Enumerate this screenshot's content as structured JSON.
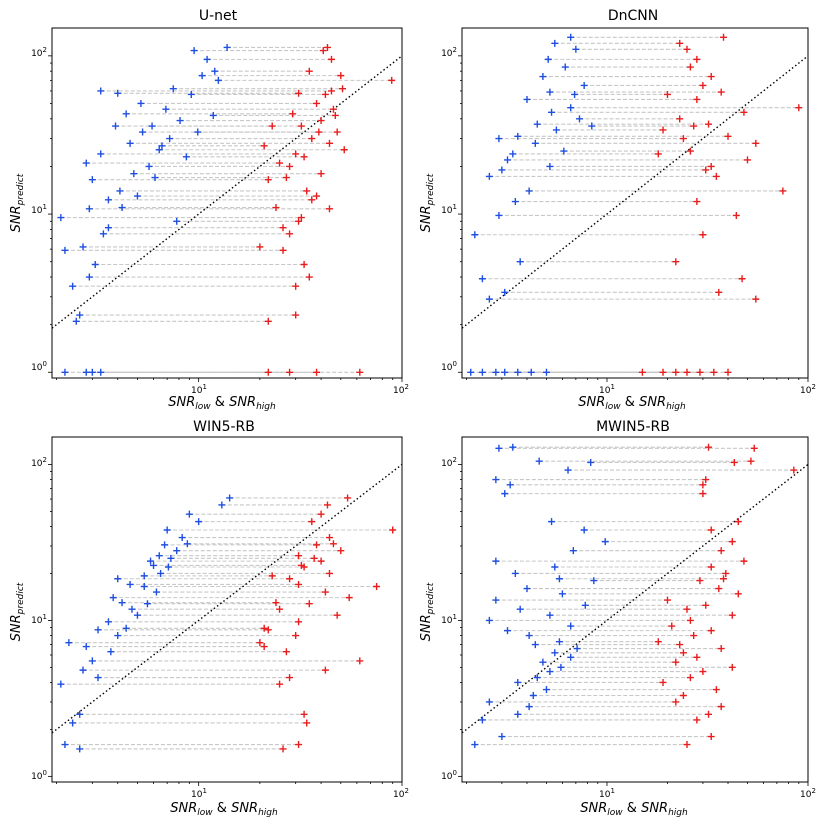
{
  "figure": {
    "xlabel": {
      "main1": "SNR",
      "sub1": "low",
      "mid": " & ",
      "main2": "SNR",
      "sub2": "high"
    },
    "ylabel": {
      "main": "SNR",
      "sub": "predict"
    }
  },
  "colors": {
    "low": "#1f4fe0",
    "high": "#e81d1d",
    "link": "#c8c8c8",
    "diag": "#000000"
  },
  "chart_data": [
    {
      "type": "scatter",
      "title": "U-net",
      "xscale": "log",
      "yscale": "log",
      "xlim": [
        1.9,
        100
      ],
      "ylim": [
        0.92,
        150
      ],
      "ticks": {
        "x": [
          "10^1",
          "10^2"
        ],
        "y": [
          "10^0",
          "10^1",
          "10^2"
        ]
      },
      "pairs": [
        [
          2.8,
          1.0,
          62
        ],
        [
          2.2,
          1.0,
          28
        ],
        [
          3.0,
          1.0,
          22
        ],
        [
          3.3,
          1.0,
          38
        ],
        [
          2.5,
          2.1,
          22
        ],
        [
          2.6,
          2.3,
          30
        ],
        [
          2.4,
          3.5,
          30
        ],
        [
          2.9,
          4.0,
          35
        ],
        [
          3.1,
          4.8,
          33
        ],
        [
          2.2,
          5.9,
          26
        ],
        [
          2.7,
          6.2,
          20
        ],
        [
          3.4,
          7.5,
          28
        ],
        [
          2.1,
          9.5,
          32
        ],
        [
          2.9,
          10.8,
          44
        ],
        [
          3.6,
          12.3,
          36
        ],
        [
          4.1,
          14.0,
          34
        ],
        [
          3.0,
          16.5,
          22
        ],
        [
          4.8,
          18.0,
          40
        ],
        [
          5.7,
          20.0,
          28
        ],
        [
          2.8,
          21.0,
          25
        ],
        [
          3.3,
          24.0,
          30
        ],
        [
          6.4,
          25.5,
          52
        ],
        [
          4.6,
          28.0,
          44
        ],
        [
          7.2,
          30.0,
          36
        ],
        [
          5.3,
          33.0,
          48
        ],
        [
          3.9,
          36.0,
          32
        ],
        [
          8.1,
          39.0,
          40
        ],
        [
          4.4,
          43.0,
          29
        ],
        [
          6.9,
          46.0,
          46
        ],
        [
          5.2,
          50.0,
          38
        ],
        [
          4.0,
          58.0,
          31
        ],
        [
          7.5,
          62.0,
          51
        ],
        [
          9.2,
          57.0,
          42
        ],
        [
          3.3,
          60.0,
          45
        ],
        [
          10.4,
          75.0,
          50
        ],
        [
          12.0,
          80.0,
          35
        ],
        [
          11.0,
          95.0,
          45
        ],
        [
          13.8,
          113.0,
          43
        ],
        [
          9.5,
          108.0,
          41
        ],
        [
          12.5,
          70.0,
          89
        ],
        [
          8.7,
          23.0,
          33
        ],
        [
          6.1,
          17.0,
          27
        ],
        [
          5.0,
          13.0,
          38
        ],
        [
          4.2,
          11.0,
          24
        ],
        [
          7.8,
          9.0,
          31
        ],
        [
          3.6,
          8.2,
          26
        ],
        [
          6.6,
          27.0,
          21
        ],
        [
          5.9,
          36.0,
          23
        ],
        [
          9.9,
          33.0,
          39
        ],
        [
          11.8,
          42.0,
          47
        ]
      ]
    },
    {
      "type": "scatter",
      "title": "DnCNN",
      "xscale": "log",
      "yscale": "log",
      "xlim": [
        1.9,
        100
      ],
      "ylim": [
        0.92,
        150
      ],
      "ticks": {
        "x": [
          "10^1",
          "10^2"
        ],
        "y": [
          "10^0",
          "10^1",
          "10^2"
        ]
      },
      "pairs": [
        [
          2.1,
          1.0,
          15
        ],
        [
          2.4,
          1.0,
          19
        ],
        [
          2.8,
          1.0,
          22
        ],
        [
          3.1,
          1.0,
          25
        ],
        [
          3.6,
          1.0,
          29
        ],
        [
          4.2,
          1.0,
          34
        ],
        [
          5.0,
          1.0,
          40
        ],
        [
          2.6,
          2.9,
          55
        ],
        [
          3.1,
          3.2,
          36
        ],
        [
          2.4,
          3.9,
          47
        ],
        [
          3.7,
          5.0,
          22
        ],
        [
          2.2,
          7.4,
          30
        ],
        [
          2.9,
          9.8,
          44
        ],
        [
          3.5,
          12.0,
          28
        ],
        [
          4.1,
          14.0,
          75
        ],
        [
          2.6,
          17.3,
          35
        ],
        [
          5.2,
          20.0,
          33
        ],
        [
          3.2,
          22.0,
          50
        ],
        [
          6.1,
          25.0,
          26
        ],
        [
          4.4,
          28.0,
          55
        ],
        [
          3.6,
          31.0,
          40
        ],
        [
          5.6,
          34.0,
          19
        ],
        [
          4.5,
          37.0,
          32
        ],
        [
          7.3,
          40.0,
          23
        ],
        [
          5.3,
          44.0,
          48
        ],
        [
          6.6,
          47.0,
          90
        ],
        [
          4.0,
          53.0,
          28
        ],
        [
          5.2,
          59.0,
          37
        ],
        [
          7.7,
          65.0,
          30
        ],
        [
          4.8,
          74.0,
          33
        ],
        [
          6.2,
          85.0,
          26
        ],
        [
          5.1,
          95.0,
          28
        ],
        [
          7.0,
          110.0,
          25
        ],
        [
          6.6,
          131.0,
          38
        ],
        [
          5.5,
          120.0,
          23
        ],
        [
          6.9,
          57.0,
          20
        ],
        [
          3.4,
          24.0,
          18
        ],
        [
          2.9,
          30.0,
          24
        ],
        [
          8.4,
          36.0,
          27
        ],
        [
          3.0,
          19.0,
          31
        ]
      ]
    },
    {
      "type": "scatter",
      "title": "WIN5-RB",
      "xscale": "log",
      "yscale": "log",
      "xlim": [
        1.9,
        100
      ],
      "ylim": [
        0.92,
        150
      ],
      "ticks": {
        "x": [
          "10^1",
          "10^2"
        ],
        "y": [
          "10^0",
          "10^1",
          "10^2"
        ]
      },
      "pairs": [
        [
          2.6,
          1.5,
          26
        ],
        [
          2.2,
          1.6,
          31
        ],
        [
          2.4,
          2.2,
          34
        ],
        [
          2.6,
          2.5,
          33
        ],
        [
          2.1,
          3.9,
          25
        ],
        [
          3.2,
          4.3,
          28
        ],
        [
          2.7,
          4.8,
          42
        ],
        [
          3.0,
          5.5,
          62
        ],
        [
          3.7,
          6.3,
          27
        ],
        [
          2.3,
          7.2,
          20
        ],
        [
          4.0,
          8.0,
          30
        ],
        [
          4.4,
          8.9,
          21
        ],
        [
          3.6,
          9.8,
          31
        ],
        [
          5.0,
          10.8,
          48
        ],
        [
          4.7,
          11.8,
          25
        ],
        [
          5.6,
          12.8,
          35
        ],
        [
          3.8,
          14.0,
          55
        ],
        [
          6.2,
          15.2,
          42
        ],
        [
          5.4,
          16.5,
          75
        ],
        [
          4.0,
          18.5,
          28
        ],
        [
          6.5,
          20.0,
          44
        ],
        [
          7.1,
          22.0,
          33
        ],
        [
          5.8,
          24.0,
          40
        ],
        [
          6.4,
          26.0,
          31
        ],
        [
          7.8,
          28.0,
          50
        ],
        [
          6.8,
          30.5,
          38
        ],
        [
          8.3,
          34.0,
          44
        ],
        [
          7.0,
          38.0,
          90
        ],
        [
          10.0,
          43.0,
          36
        ],
        [
          13.0,
          55.0,
          43
        ],
        [
          14.2,
          61.0,
          54
        ],
        [
          9.0,
          48.0,
          40
        ],
        [
          4.2,
          13.0,
          24
        ],
        [
          3.2,
          8.7,
          22
        ],
        [
          2.8,
          6.8,
          21
        ],
        [
          4.6,
          17.0,
          31
        ],
        [
          5.4,
          19.3,
          23
        ],
        [
          7.3,
          25.0,
          37
        ],
        [
          8.8,
          31.0,
          46
        ],
        [
          6.0,
          22.5,
          32
        ]
      ]
    },
    {
      "type": "scatter",
      "title": "MWIN5-RB",
      "xscale": "log",
      "yscale": "log",
      "xlim": [
        1.9,
        100
      ],
      "ylim": [
        0.92,
        150
      ],
      "ticks": {
        "x": [
          "10^1",
          "10^2"
        ],
        "y": [
          "10^0",
          "10^1",
          "10^2"
        ]
      },
      "pairs": [
        [
          2.2,
          1.6,
          25
        ],
        [
          3.0,
          1.8,
          33
        ],
        [
          2.4,
          2.3,
          28
        ],
        [
          3.6,
          2.5,
          32
        ],
        [
          4.1,
          2.8,
          37
        ],
        [
          2.6,
          3.0,
          22
        ],
        [
          4.3,
          3.3,
          24
        ],
        [
          5.0,
          3.6,
          35
        ],
        [
          3.6,
          4.0,
          19
        ],
        [
          4.5,
          4.3,
          26
        ],
        [
          5.2,
          4.7,
          30
        ],
        [
          5.9,
          5.0,
          42
        ],
        [
          4.8,
          5.4,
          22
        ],
        [
          6.6,
          5.8,
          28
        ],
        [
          5.5,
          6.2,
          24
        ],
        [
          7.1,
          6.6,
          37
        ],
        [
          5.8,
          7.3,
          18
        ],
        [
          4.1,
          8.0,
          27
        ],
        [
          3.2,
          8.6,
          33
        ],
        [
          6.6,
          9.2,
          21
        ],
        [
          2.6,
          10.0,
          26
        ],
        [
          5.2,
          10.8,
          42
        ],
        [
          3.7,
          11.8,
          25
        ],
        [
          7.8,
          12.5,
          31
        ],
        [
          2.8,
          13.5,
          20
        ],
        [
          6.0,
          14.8,
          45
        ],
        [
          4.0,
          16.0,
          36
        ],
        [
          8.6,
          18.0,
          29
        ],
        [
          3.5,
          20.0,
          39
        ],
        [
          5.5,
          22.0,
          33
        ],
        [
          2.8,
          24.0,
          48
        ],
        [
          6.8,
          28.0,
          37
        ],
        [
          9.8,
          32.0,
          42
        ],
        [
          7.7,
          38.0,
          33
        ],
        [
          5.3,
          43.0,
          45
        ],
        [
          3.1,
          65.0,
          30
        ],
        [
          2.8,
          80.0,
          31
        ],
        [
          4.6,
          105.0,
          52
        ],
        [
          2.9,
          127.0,
          54
        ],
        [
          3.4,
          129.0,
          32
        ],
        [
          6.4,
          92.0,
          85
        ],
        [
          8.3,
          103.0,
          43
        ],
        [
          3.3,
          74.0,
          30
        ],
        [
          5.8,
          18.5,
          38
        ],
        [
          4.4,
          7.0,
          23
        ]
      ]
    }
  ]
}
